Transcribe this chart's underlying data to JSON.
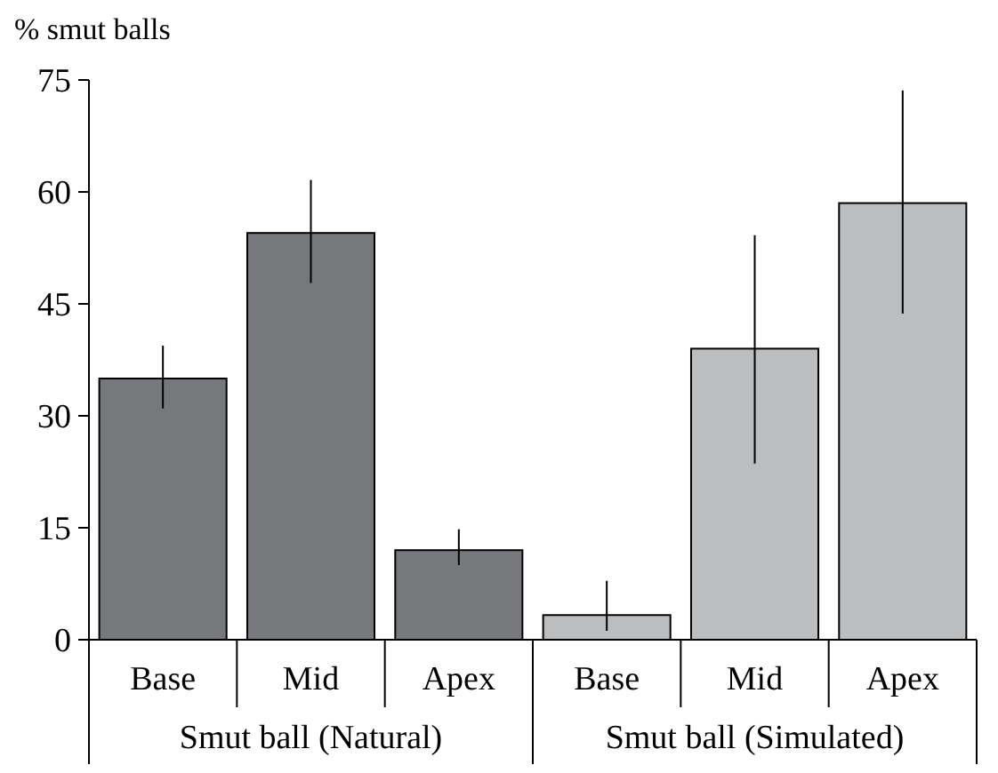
{
  "chart_data": {
    "type": "bar",
    "ylabel": "% smut balls",
    "categories": [
      "Base",
      "Mid",
      "Apex",
      "Base",
      "Mid",
      "Apex"
    ],
    "values": [
      35,
      54.5,
      12,
      3.3,
      39,
      58.5
    ],
    "colors": [
      "#77787b",
      "#77787b",
      "#77787b",
      "#bcbdbf",
      "#bcbdbf",
      "#bcbdbf"
    ],
    "errors": [
      [
        31,
        39.4
      ],
      [
        47.8,
        61.6
      ],
      [
        10,
        14.8
      ],
      [
        1.2,
        7.9
      ],
      [
        23.6,
        54.2
      ],
      [
        43.7,
        73.6
      ]
    ],
    "ylim": [
      0,
      75
    ],
    "yticks": [
      0,
      15,
      30,
      45,
      60,
      75
    ],
    "grid": false,
    "annotations": [
      "Smut ball (Natural)",
      "Smut ball (Simulated)"
    ]
  }
}
